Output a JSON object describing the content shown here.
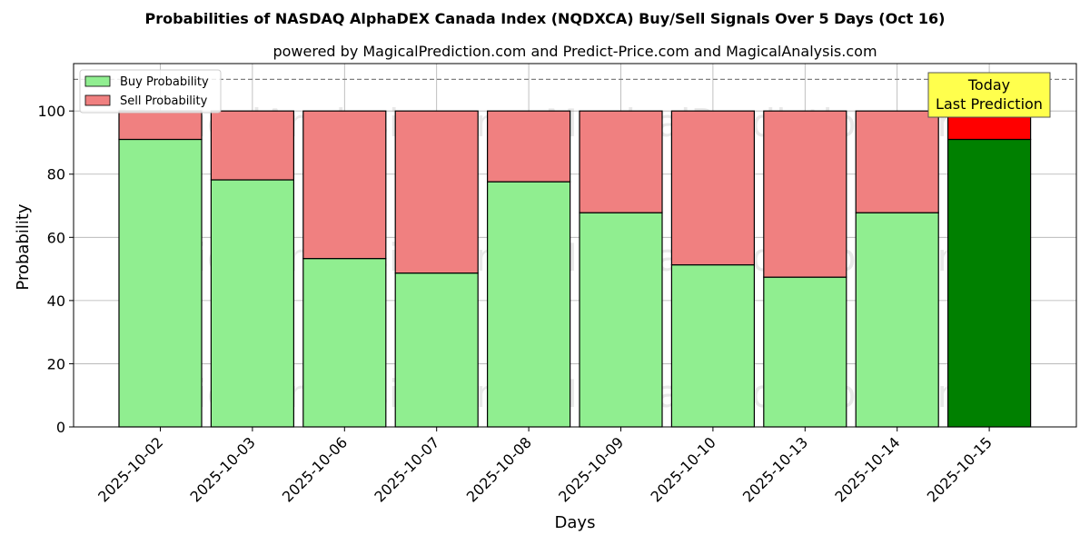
{
  "chart_data": {
    "type": "bar",
    "stacked": true,
    "title": "Probabilities of NASDAQ AlphaDEX Canada Index (NQDXCA) Buy/Sell Signals Over 5 Days (Oct 16)",
    "subtitle": "powered by MagicalPrediction.com and Predict-Price.com and MagicalAnalysis.com",
    "xlabel": "Days",
    "ylabel": "Probability",
    "ylim": [
      0,
      115
    ],
    "yticks": [
      0,
      20,
      40,
      60,
      80,
      100
    ],
    "grid": true,
    "legend_placement": "top-left",
    "reference_line": 110,
    "categories": [
      "2025-10-02",
      "2025-10-03",
      "2025-10-06",
      "2025-10-07",
      "2025-10-08",
      "2025-10-09",
      "2025-10-10",
      "2025-10-13",
      "2025-10-14",
      "2025-10-15"
    ],
    "series": [
      {
        "name": "Buy Probability",
        "color": "#90ee90",
        "highlight_color": "#008000",
        "values": [
          91,
          78.2,
          53.3,
          48.7,
          77.6,
          67.8,
          51.3,
          47.4,
          67.8,
          91
        ]
      },
      {
        "name": "Sell Probability",
        "color": "#f08080",
        "highlight_color": "#ff0000",
        "values": [
          9,
          21.8,
          46.7,
          51.3,
          22.4,
          32.2,
          48.7,
          52.6,
          32.2,
          9
        ]
      }
    ],
    "annotation": {
      "lines": [
        "Today",
        "Last Prediction"
      ],
      "color": "#ffff4d"
    },
    "watermarks": [
      "MagicalAnalysis.com",
      "MagicalPrediction.com"
    ]
  }
}
